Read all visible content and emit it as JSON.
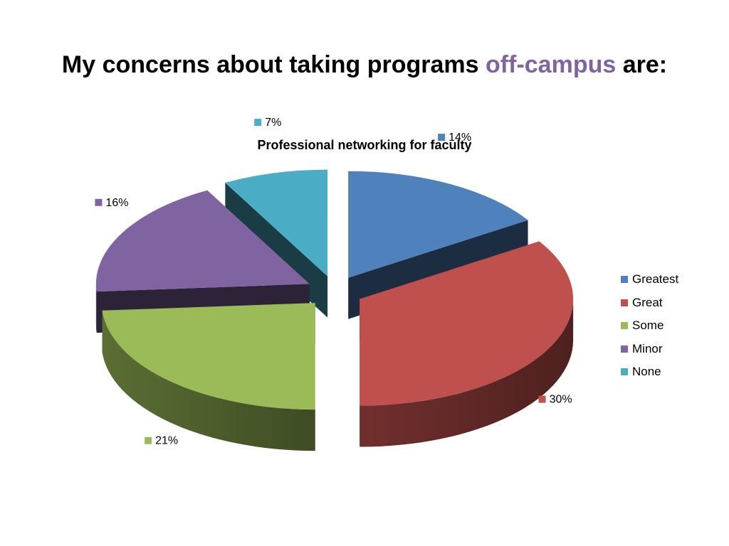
{
  "slide": {
    "title_before": "My concerns about taking programs ",
    "title_accent": "off-campus",
    "title_after": " are:",
    "accent_color": "#8064a2"
  },
  "chart_data": {
    "type": "pie",
    "title": "Professional networking for faculty",
    "categories": [
      "Greatest",
      "Great",
      "Some",
      "Minor",
      "None"
    ],
    "values": [
      14,
      30,
      21,
      16,
      7
    ],
    "data_labels": [
      "14%",
      "30%",
      "21%",
      "16%",
      "7%"
    ],
    "colors": [
      "#4f81bd",
      "#c0504d",
      "#9bbb59",
      "#8064a2",
      "#4bacc6"
    ],
    "legend_position": "right",
    "style": "3d-exploded"
  }
}
